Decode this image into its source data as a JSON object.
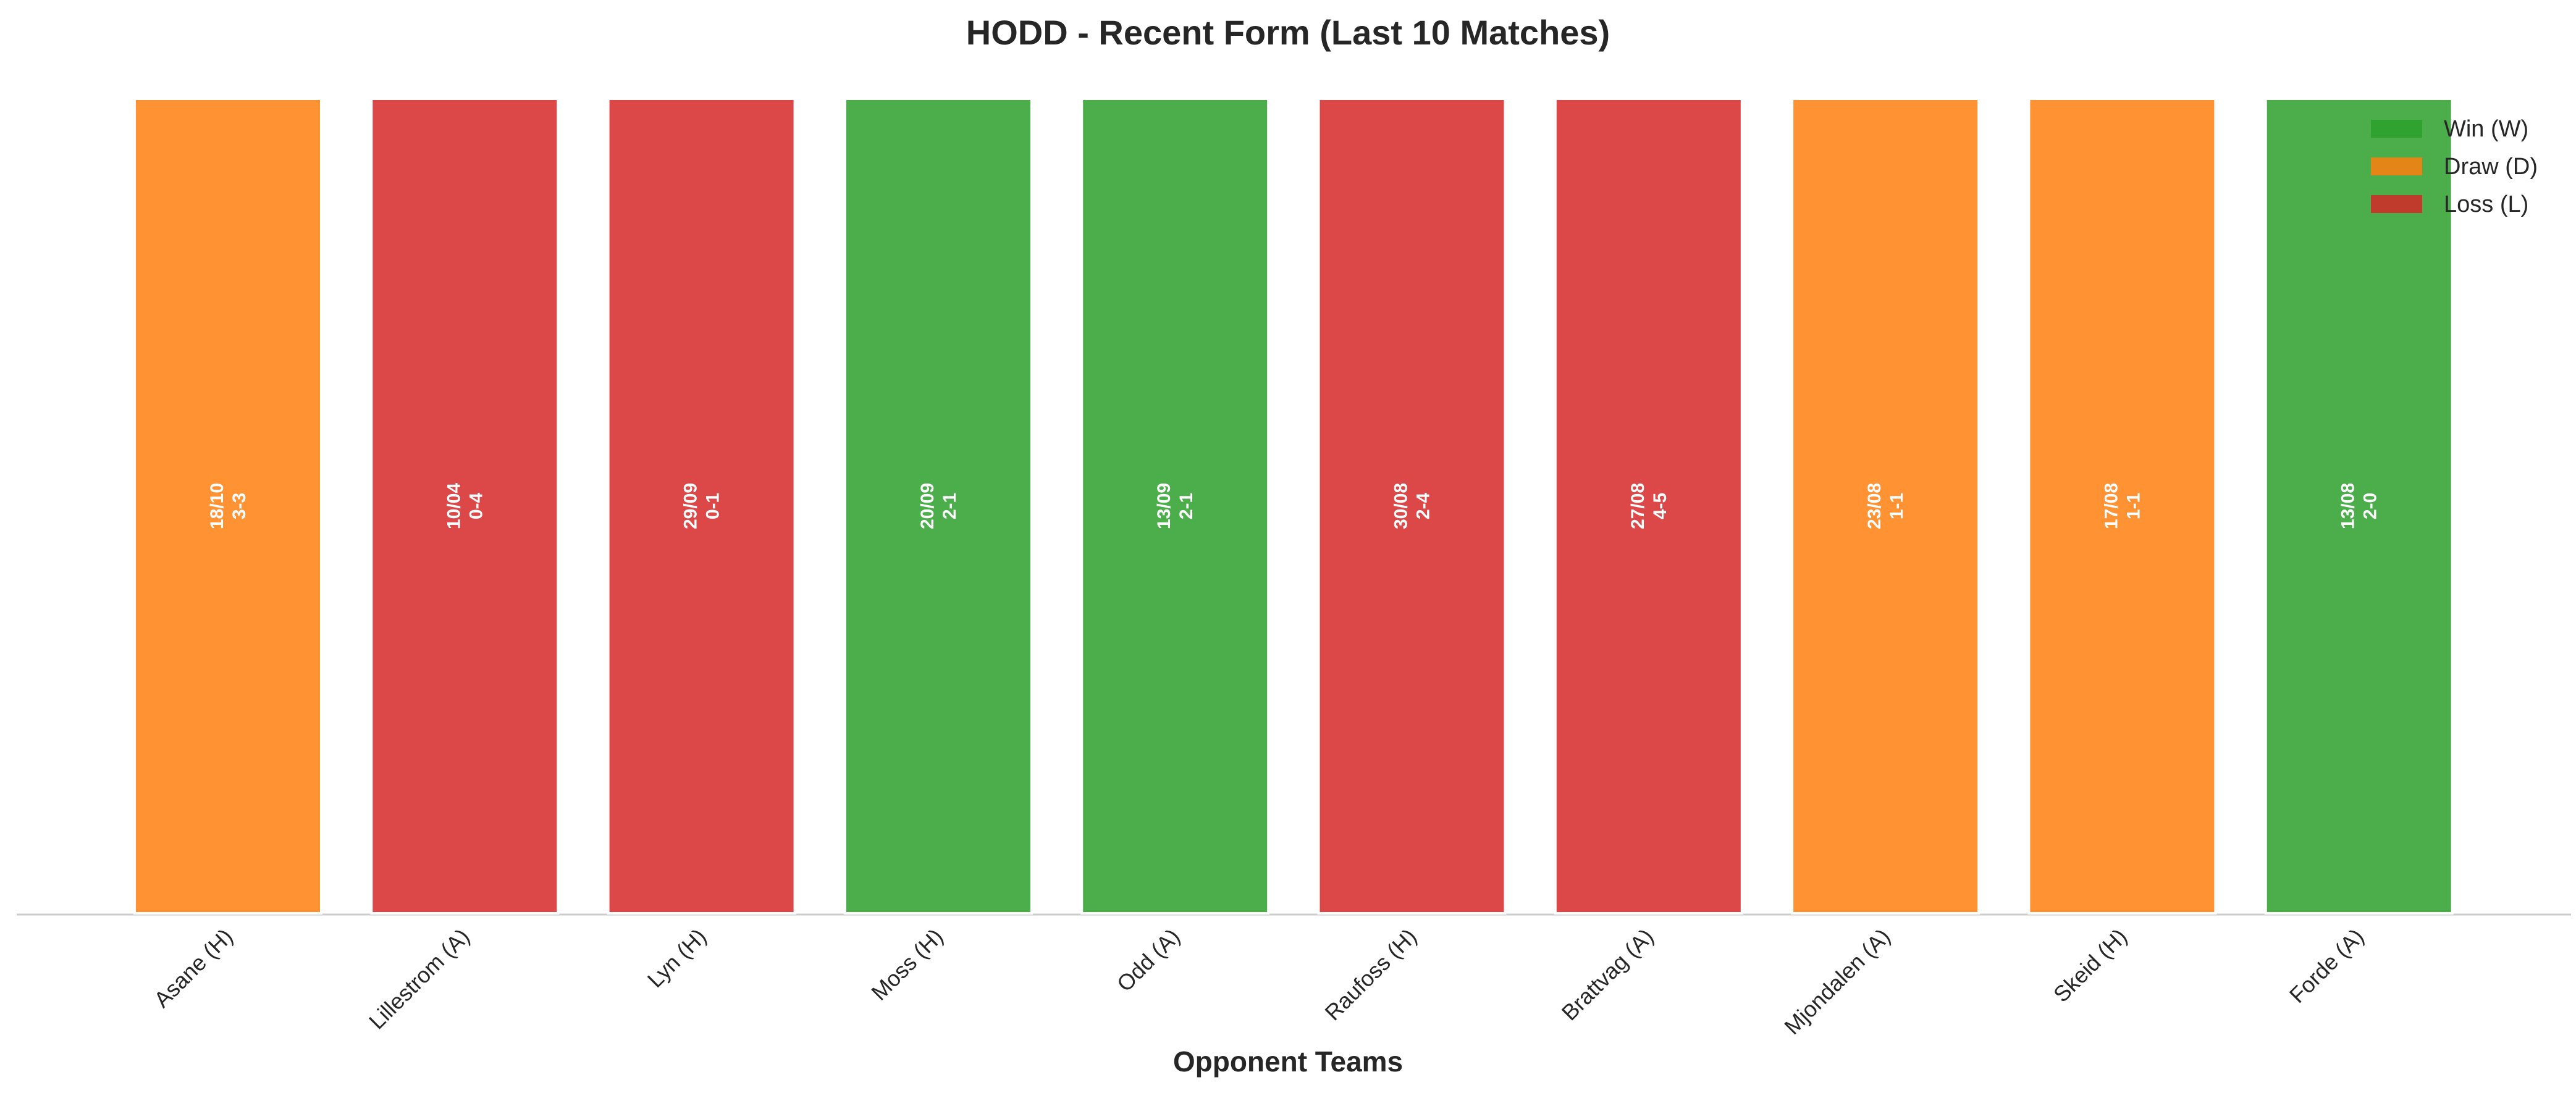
{
  "chart_data": {
    "type": "bar",
    "title": "HODD - Recent Form (Last 10 Matches)",
    "x_label": "Opponent Teams",
    "categories": [
      "Asane (H)",
      "Lillestrom (A)",
      "Lyn (H)",
      "Moss (H)",
      "Odd (A)",
      "Raufoss (H)",
      "Brattvag (A)",
      "Mjondalen (A)",
      "Skeid (H)",
      "Forde (A)"
    ],
    "values": [
      1,
      1,
      1,
      1,
      1,
      1,
      1,
      1,
      1,
      1
    ],
    "dates": [
      "18/10",
      "10/04",
      "29/09",
      "20/09",
      "13/09",
      "30/08",
      "27/08",
      "23/08",
      "17/08",
      "13/08"
    ],
    "scores": [
      "3-3",
      "0-4",
      "0-1",
      "2-1",
      "2-1",
      "2-4",
      "4-5",
      "1-1",
      "1-1",
      "2-0"
    ],
    "colors": [
      "#ff7f0e",
      "#d62728",
      "#d62728",
      "#2ca02c",
      "#2ca02c",
      "#d62728",
      "#d62728",
      "#ff7f0e",
      "#ff7f0e",
      "#2ca02c"
    ],
    "ylim": [
      0,
      1
    ],
    "legend": [
      {
        "name": "Win (W)",
        "color": "#2ca02c"
      },
      {
        "name": "Draw (D)",
        "color": "#ff7f0e"
      },
      {
        "name": "Loss (L)",
        "color": "#d62728"
      }
    ],
    "legend_position": "upper right"
  }
}
